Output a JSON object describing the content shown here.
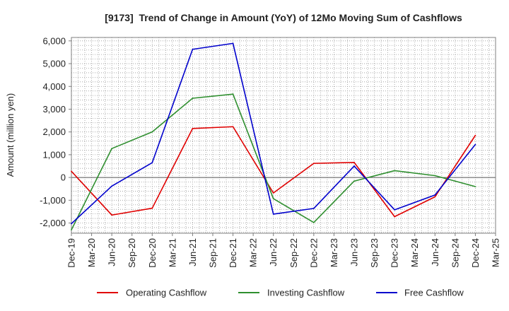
{
  "chart_data": {
    "type": "line",
    "title": "[9173]  Trend of Change in Amount (YoY) of 12Mo Moving Sum of Cashflows",
    "xlabel": "",
    "ylabel": "Amount (million yen)",
    "categories": [
      "Dec-19",
      "Mar-20",
      "Jun-20",
      "Sep-20",
      "Dec-20",
      "Mar-21",
      "Jun-21",
      "Sep-21",
      "Dec-21",
      "Mar-22",
      "Jun-22",
      "Sep-22",
      "Dec-22",
      "Mar-23",
      "Jun-23",
      "Sep-23",
      "Dec-23",
      "Mar-24",
      "Jun-24",
      "Sep-24",
      "Dec-24",
      "Mar-25"
    ],
    "ylim": [
      -2450,
      6150
    ],
    "yticks": [
      -2000,
      -1000,
      0,
      1000,
      2000,
      3000,
      4000,
      5000,
      6000
    ],
    "ytick_labels": [
      "-2,000",
      "-1,000",
      "0",
      "1,000",
      "2,000",
      "3,000",
      "4,000",
      "5,000",
      "6,000"
    ],
    "grid": true,
    "series": [
      {
        "name": "Operating Cashflow",
        "color": "#e00000",
        "values": [
          270,
          null,
          -1650,
          null,
          -1350,
          null,
          2150,
          null,
          2230,
          null,
          -680,
          null,
          620,
          null,
          660,
          null,
          -1720,
          null,
          -850,
          null,
          1850,
          null
        ]
      },
      {
        "name": "Investing Cashflow",
        "color": "#2f8f2f",
        "values": [
          -2300,
          null,
          1270,
          null,
          2000,
          null,
          3480,
          null,
          3660,
          null,
          -930,
          null,
          -1980,
          null,
          -160,
          null,
          300,
          null,
          80,
          null,
          -400,
          null
        ]
      },
      {
        "name": "Free Cashflow",
        "color": "#0000cc",
        "values": [
          -2030,
          null,
          -380,
          null,
          650,
          null,
          5630,
          null,
          5890,
          null,
          -1610,
          null,
          -1360,
          null,
          500,
          null,
          -1420,
          null,
          -770,
          null,
          1450,
          null
        ]
      }
    ]
  }
}
